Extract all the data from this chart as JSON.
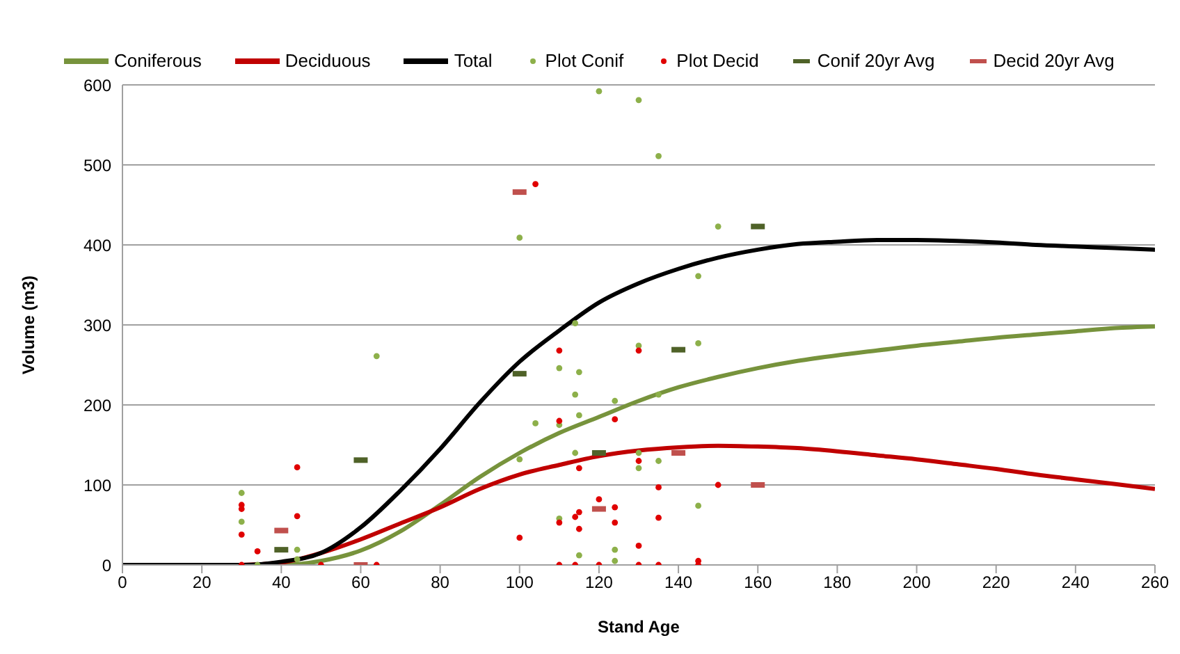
{
  "chart_data": {
    "type": "line",
    "xlabel": "Stand Age",
    "ylabel": "Volume (m3)",
    "xlim": [
      0,
      260
    ],
    "xticks": [
      0,
      20,
      40,
      60,
      80,
      100,
      120,
      140,
      160,
      180,
      200,
      220,
      240,
      260
    ],
    "ylim": [
      0,
      600
    ],
    "yticks": [
      0,
      100,
      200,
      300,
      400,
      500,
      600
    ],
    "grid": "y",
    "legend": "top",
    "line_style": "solid",
    "series": [
      {
        "name": "Coniferous",
        "color": "#77933c",
        "marker": "none",
        "x": [
          20,
          30,
          40,
          50,
          60,
          70,
          80,
          90,
          100,
          110,
          120,
          130,
          140,
          150,
          160,
          170,
          180,
          190,
          200,
          210,
          220,
          230,
          240,
          250,
          260
        ],
        "values": [
          0,
          0,
          0,
          5,
          18,
          42,
          75,
          110,
          140,
          165,
          185,
          205,
          222,
          235,
          246,
          255,
          262,
          268,
          274,
          279,
          284,
          288,
          292,
          296,
          298
        ]
      },
      {
        "name": "Deciduous",
        "color": "#c00000",
        "marker": "none",
        "x": [
          20,
          30,
          40,
          50,
          60,
          70,
          80,
          90,
          100,
          110,
          120,
          130,
          140,
          150,
          160,
          170,
          180,
          190,
          200,
          210,
          220,
          230,
          240,
          250,
          260
        ],
        "values": [
          0,
          0,
          3,
          15,
          32,
          52,
          72,
          95,
          113,
          125,
          136,
          143,
          147,
          149,
          148,
          146,
          142,
          137,
          132,
          126,
          120,
          113,
          107,
          101,
          95
        ]
      },
      {
        "name": "Total",
        "color": "#000000",
        "marker": "none",
        "x": [
          0,
          10,
          20,
          30,
          40,
          50,
          60,
          70,
          80,
          90,
          100,
          110,
          120,
          130,
          140,
          150,
          160,
          170,
          180,
          190,
          200,
          210,
          220,
          230,
          240,
          250,
          260
        ],
        "values": [
          0,
          0,
          0,
          0,
          4,
          15,
          47,
          93,
          145,
          203,
          254,
          293,
          328,
          352,
          370,
          384,
          394,
          401,
          404,
          406,
          406,
          405,
          403,
          400,
          398,
          396,
          394
        ]
      },
      {
        "name": "Plot Conif",
        "type": "scatter",
        "color": "#8db04a",
        "marker": "circle",
        "x": [
          30,
          30,
          34,
          44,
          44,
          64,
          120,
          130,
          135,
          100,
          150,
          145,
          114,
          130,
          145,
          110,
          115,
          104,
          114,
          124,
          110,
          115,
          135,
          100,
          114,
          130,
          130,
          135,
          145,
          110,
          115,
          124,
          124
        ],
        "values": [
          90,
          54,
          0,
          19,
          7,
          261,
          592,
          581,
          511,
          409,
          423,
          361,
          302,
          274,
          277,
          246,
          241,
          177,
          213,
          205,
          175,
          187,
          213,
          132,
          140,
          140,
          121,
          130,
          74,
          58,
          12,
          19,
          5
        ]
      },
      {
        "name": "Plot Decid",
        "type": "scatter",
        "color": "#e00000",
        "marker": "circle",
        "x": [
          30,
          30,
          30,
          30,
          34,
          44,
          44,
          50,
          64,
          104,
          110,
          130,
          110,
          124,
          115,
          135,
          150,
          100,
          115,
          114,
          110,
          115,
          120,
          124,
          124,
          135,
          130,
          130,
          145,
          145,
          110,
          114,
          120,
          130,
          135
        ],
        "values": [
          75,
          70,
          38,
          0,
          17,
          122,
          61,
          0,
          0,
          476,
          268,
          268,
          180,
          182,
          121,
          97,
          100,
          34,
          66,
          60,
          53,
          45,
          82,
          72,
          53,
          59,
          130,
          24,
          5,
          0,
          0,
          0,
          0,
          0,
          0
        ]
      },
      {
        "name": "Conif 20yr Avg",
        "type": "scatter",
        "color": "#4f6228",
        "marker": "square",
        "x": [
          40,
          60,
          100,
          120,
          140,
          160
        ],
        "values": [
          19,
          131,
          239,
          140,
          269,
          423
        ]
      },
      {
        "name": "Decid 20yr Avg",
        "type": "scatter",
        "color": "#c0504d",
        "marker": "square",
        "x": [
          40,
          60,
          100,
          120,
          140,
          160
        ],
        "values": [
          43,
          0,
          466,
          70,
          140,
          100
        ]
      }
    ]
  }
}
